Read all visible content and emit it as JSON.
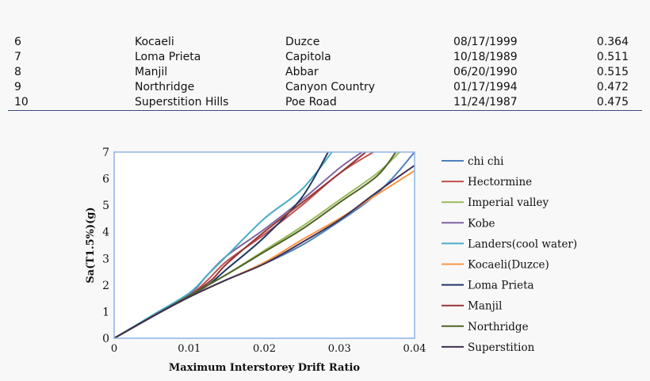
{
  "table": {
    "rows": [
      {
        "no": "6",
        "event": "Kocaeli",
        "station": "Duzce",
        "date": "08/17/1999",
        "pga": "0.364"
      },
      {
        "no": "7",
        "event": "Loma Prieta",
        "station": "Capitola",
        "date": "10/18/1989",
        "pga": "0.511"
      },
      {
        "no": "8",
        "event": "Manjil",
        "station": "Abbar",
        "date": "06/20/1990",
        "pga": "0.515"
      },
      {
        "no": "9",
        "event": "Northridge",
        "station": "Canyon Country",
        "date": "01/17/1994",
        "pga": "0.472"
      },
      {
        "no": "10",
        "event": "Superstition Hills",
        "station": "Poe Road",
        "date": "11/24/1987",
        "pga": "0.475"
      }
    ],
    "rule_color": "#3c4a78"
  },
  "chart_data": {
    "type": "line",
    "title": "",
    "xlabel": "Maximum Interstorey Drift Ratio",
    "ylabel": "Sa(T1.5%)(g)",
    "xlim": [
      0,
      0.04
    ],
    "ylim": [
      0,
      7
    ],
    "x_ticks": [
      "0",
      "0.01",
      "0.02",
      "0.03",
      "0.04"
    ],
    "y_ticks": [
      "0",
      "1",
      "2",
      "3",
      "4",
      "5",
      "6",
      "7"
    ],
    "grid": false,
    "legend": "right",
    "frame_color": "#8db3e2",
    "series": [
      {
        "name": "chi chi",
        "color": "#4f81bd",
        "points": [
          [
            0,
            0
          ],
          [
            0.005,
            0.8
          ],
          [
            0.01,
            1.55
          ],
          [
            0.015,
            2.2
          ],
          [
            0.02,
            2.8
          ],
          [
            0.025,
            3.5
          ],
          [
            0.03,
            4.4
          ],
          [
            0.034,
            5.2
          ],
          [
            0.037,
            6.0
          ],
          [
            0.04,
            7.0
          ]
        ]
      },
      {
        "name": "Hectormine",
        "color": "#c0504d",
        "points": [
          [
            0,
            0
          ],
          [
            0.005,
            0.8
          ],
          [
            0.01,
            1.6
          ],
          [
            0.0125,
            2.2
          ],
          [
            0.015,
            2.9
          ],
          [
            0.02,
            3.9
          ],
          [
            0.025,
            5.0
          ],
          [
            0.03,
            6.2
          ],
          [
            0.0345,
            7.0
          ]
        ]
      },
      {
        "name": "Imperial valley",
        "color": "#9bbb59",
        "points": [
          [
            0,
            0
          ],
          [
            0.005,
            0.8
          ],
          [
            0.01,
            1.6
          ],
          [
            0.015,
            2.4
          ],
          [
            0.02,
            3.3
          ],
          [
            0.025,
            4.2
          ],
          [
            0.03,
            5.2
          ],
          [
            0.035,
            6.2
          ],
          [
            0.038,
            7.0
          ]
        ]
      },
      {
        "name": "Kobe",
        "color": "#8064a2",
        "points": [
          [
            0,
            0
          ],
          [
            0.005,
            0.8
          ],
          [
            0.01,
            1.65
          ],
          [
            0.0125,
            2.4
          ],
          [
            0.015,
            3.1
          ],
          [
            0.02,
            4.1
          ],
          [
            0.025,
            5.2
          ],
          [
            0.03,
            6.4
          ],
          [
            0.033,
            7.0
          ]
        ]
      },
      {
        "name": "Landers(cool water)",
        "color": "#4bacc6",
        "points": [
          [
            0,
            0
          ],
          [
            0.005,
            0.85
          ],
          [
            0.01,
            1.7
          ],
          [
            0.0125,
            2.4
          ],
          [
            0.015,
            3.1
          ],
          [
            0.02,
            4.5
          ],
          [
            0.025,
            5.6
          ],
          [
            0.029,
            7.0
          ]
        ]
      },
      {
        "name": "Kocaeli(Duzce)",
        "color": "#f79646",
        "points": [
          [
            0,
            0
          ],
          [
            0.005,
            0.8
          ],
          [
            0.01,
            1.55
          ],
          [
            0.015,
            2.2
          ],
          [
            0.02,
            2.85
          ],
          [
            0.025,
            3.7
          ],
          [
            0.03,
            4.5
          ],
          [
            0.035,
            5.4
          ],
          [
            0.04,
            6.3
          ]
        ]
      },
      {
        "name": "Loma Prieta",
        "color": "#1f3864",
        "points": [
          [
            0,
            0
          ],
          [
            0.005,
            0.8
          ],
          [
            0.01,
            1.6
          ],
          [
            0.0125,
            2.0
          ],
          [
            0.015,
            2.6
          ],
          [
            0.02,
            3.8
          ],
          [
            0.025,
            5.3
          ],
          [
            0.0285,
            7.0
          ]
        ]
      },
      {
        "name": "Manjil",
        "color": "#943634",
        "points": [
          [
            0,
            0
          ],
          [
            0.005,
            0.8
          ],
          [
            0.01,
            1.6
          ],
          [
            0.013,
            2.2
          ],
          [
            0.015,
            2.8
          ],
          [
            0.02,
            4.0
          ],
          [
            0.025,
            5.1
          ],
          [
            0.03,
            6.2
          ],
          [
            0.0335,
            7.0
          ]
        ]
      },
      {
        "name": "Northridge",
        "color": "#4f6228",
        "points": [
          [
            0,
            0
          ],
          [
            0.005,
            0.8
          ],
          [
            0.01,
            1.6
          ],
          [
            0.015,
            2.4
          ],
          [
            0.02,
            3.25
          ],
          [
            0.025,
            4.1
          ],
          [
            0.03,
            5.1
          ],
          [
            0.035,
            6.1
          ],
          [
            0.0375,
            7.0
          ]
        ]
      },
      {
        "name": "Superstition",
        "color": "#3f3151",
        "points": [
          [
            0,
            0
          ],
          [
            0.005,
            0.8
          ],
          [
            0.01,
            1.55
          ],
          [
            0.015,
            2.2
          ],
          [
            0.02,
            2.8
          ],
          [
            0.025,
            3.6
          ],
          [
            0.03,
            4.45
          ],
          [
            0.035,
            5.5
          ],
          [
            0.04,
            6.5
          ]
        ]
      }
    ]
  }
}
